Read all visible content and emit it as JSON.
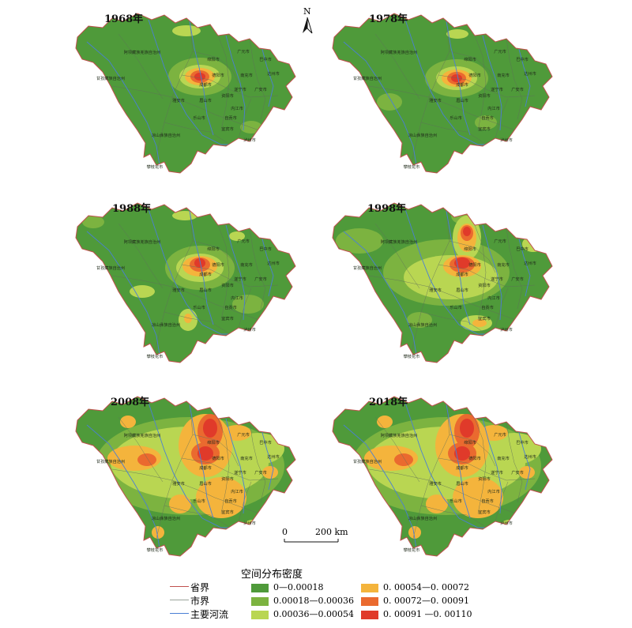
{
  "panels": [
    {
      "year": "1968年",
      "key": "p1968"
    },
    {
      "year": "1978年",
      "key": "p1978"
    },
    {
      "year": "1988年",
      "key": "p1988"
    },
    {
      "year": "1998年",
      "key": "p1998"
    },
    {
      "year": "2008年",
      "key": "p2008"
    },
    {
      "year": "2018年",
      "key": "p2018"
    }
  ],
  "map_labels": {
    "aba": "阿坝藏族羌族自治州",
    "ganzi": "甘孜藏族自治州",
    "liangshan": "凉山彝族自治州",
    "panzhihua": "攀枝花市",
    "guangyuan": "广元市",
    "bazhong": "巴中市",
    "dazhou": "达州市",
    "mianyang": "绵阳市",
    "deyang": "德阳市",
    "chengdu": "成都市",
    "nanchong": "南充市",
    "suining": "遂宁市",
    "ziyang": "资阳市",
    "neijiang": "内江市",
    "yaan": "雅安市",
    "meishan": "眉山市",
    "leshan": "乐山市",
    "zigong": "自贡市",
    "yibin": "宜宾市",
    "luzhou": "泸州市",
    "guangan": "广安市"
  },
  "north_label": "N",
  "scale": {
    "start": "0",
    "end": "200 km"
  },
  "legend": {
    "title": "空间分布密度",
    "lines": [
      {
        "label": "省界",
        "color": "#c0504d"
      },
      {
        "label": "市界",
        "color": "#9aa39a"
      },
      {
        "label": "主要河流",
        "color": "#4a7fd4"
      }
    ],
    "classes": [
      {
        "label": "0—0.00018",
        "color": "#4f9a3a"
      },
      {
        "label": "0.00018—0.00036",
        "color": "#7cb340"
      },
      {
        "label": "0.00036—0.00054",
        "color": "#b9d652"
      },
      {
        "label": "0. 00054—0. 00072",
        "color": "#f4b43c"
      },
      {
        "label": "0. 00072—0. 00091",
        "color": "#ea6a2f"
      },
      {
        "label": "0. 00091 —0. 00110",
        "color": "#e03a2a"
      }
    ]
  }
}
